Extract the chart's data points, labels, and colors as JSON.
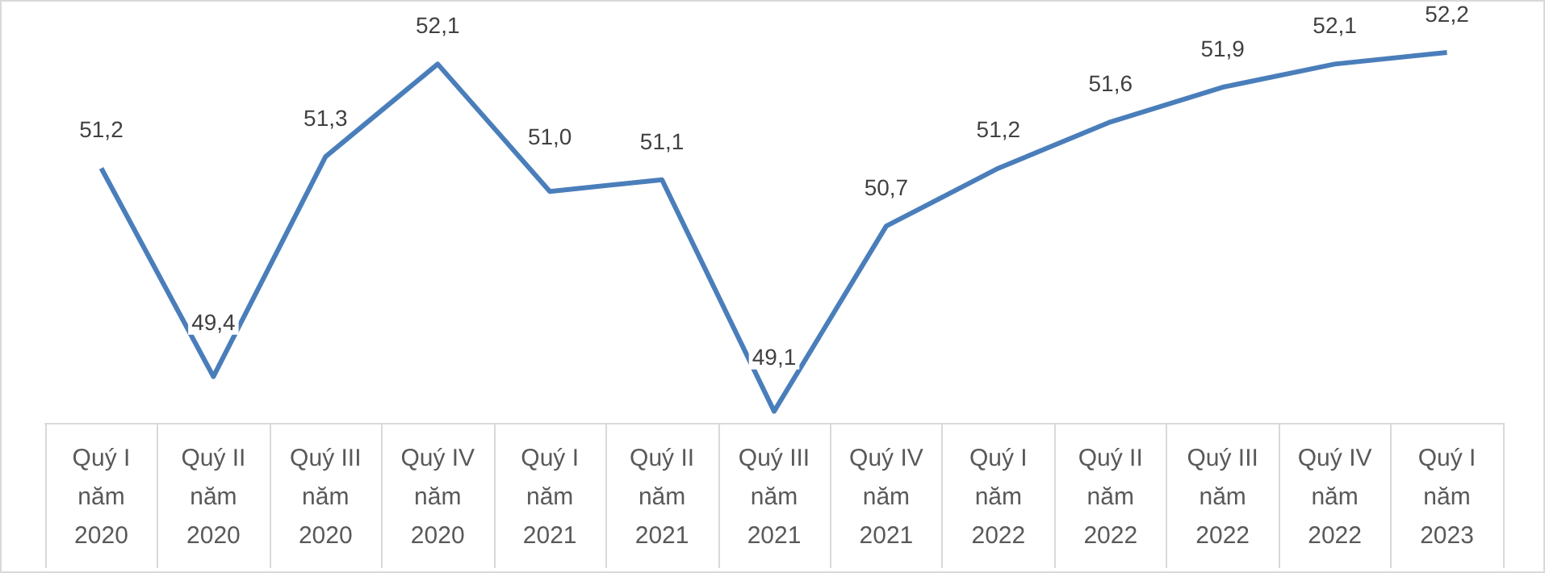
{
  "chart_data": {
    "type": "line",
    "categories": [
      "Quý I\nnăm\n2020",
      "Quý II\nnăm\n2020",
      "Quý III\nnăm\n2020",
      "Quý IV\nnăm\n2020",
      "Quý I\nnăm\n2021",
      "Quý II\nnăm\n2021",
      "Quý III\nnăm\n2021",
      "Quý IV\nnăm\n2021",
      "Quý I\nnăm\n2022",
      "Quý II\nnăm\n2022",
      "Quý III\nnăm\n2022",
      "Quý IV\nnăm\n2022",
      "Quý I\nnăm\n2023"
    ],
    "series": [
      {
        "color": "#4a7ebb",
        "values": [
          51.2,
          49.4,
          51.3,
          52.1,
          51.0,
          51.1,
          49.1,
          50.7,
          51.2,
          51.6,
          51.9,
          52.1,
          52.2
        ],
        "value_labels": [
          "51,2",
          "49,4",
          "51,3",
          "52,1",
          "51,0",
          "51,1",
          "49,1",
          "50,7",
          "51,2",
          "51,6",
          "51,9",
          "52,1",
          "52,2"
        ]
      }
    ],
    "grid": false,
    "marker": "none",
    "line_style": "solid",
    "tick_labels": "x"
  }
}
